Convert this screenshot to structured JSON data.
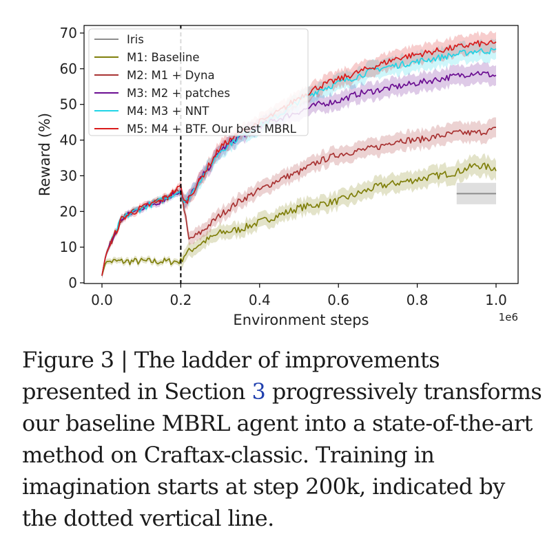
{
  "chart_data": {
    "type": "line",
    "xlabel": "Environment steps",
    "ylabel": "Reward (%)",
    "x_offset_label": "1e6",
    "xlim": [
      0,
      1.0
    ],
    "ylim": [
      0,
      70
    ],
    "xticks": [
      "0.0",
      "0.2",
      "0.4",
      "0.6",
      "0.8",
      "1.0"
    ],
    "yticks": [
      "0",
      "10",
      "20",
      "30",
      "40",
      "50",
      "60",
      "70"
    ],
    "vline_x": 0.2,
    "legend_position": "top-left",
    "series": [
      {
        "name": "Iris",
        "color": "#8c8c8c",
        "x": [
          0.9,
          1.0
        ],
        "y": [
          25,
          25
        ],
        "band": [
          [
            0.9,
            22,
            28
          ],
          [
            1.0,
            22,
            28
          ]
        ]
      },
      {
        "name": "M1: Baseline",
        "color": "#7f7f0a",
        "x": [
          0,
          0.01,
          0.05,
          0.1,
          0.15,
          0.2,
          0.21,
          0.25,
          0.3,
          0.35,
          0.4,
          0.45,
          0.5,
          0.55,
          0.6,
          0.65,
          0.7,
          0.75,
          0.8,
          0.85,
          0.9,
          0.95,
          1.0
        ],
        "y": [
          2,
          6,
          6,
          6,
          6,
          6,
          8,
          11,
          14,
          15,
          17,
          19,
          21,
          22,
          23,
          25,
          27,
          28,
          29,
          30,
          31,
          33,
          32
        ]
      },
      {
        "name": "M2: M1 + Dyna",
        "color": "#a83232",
        "x": [
          0,
          0.01,
          0.05,
          0.1,
          0.15,
          0.2,
          0.21,
          0.22,
          0.25,
          0.3,
          0.35,
          0.4,
          0.45,
          0.5,
          0.55,
          0.6,
          0.65,
          0.7,
          0.75,
          0.8,
          0.85,
          0.9,
          0.95,
          1.0
        ],
        "y": [
          2,
          8,
          18,
          21,
          23,
          26,
          20,
          12,
          14,
          19,
          23,
          26,
          29,
          31,
          34,
          36,
          37,
          38,
          40,
          40,
          41,
          42,
          42,
          43
        ]
      },
      {
        "name": "M3: M2 + patches",
        "color": "#6a0d91",
        "x": [
          0,
          0.01,
          0.05,
          0.1,
          0.15,
          0.2,
          0.21,
          0.25,
          0.3,
          0.35,
          0.4,
          0.45,
          0.5,
          0.55,
          0.6,
          0.65,
          0.7,
          0.75,
          0.8,
          0.85,
          0.9,
          0.95,
          1.0
        ],
        "y": [
          2,
          8,
          18,
          21,
          23,
          26,
          22,
          29,
          37,
          41,
          44,
          46,
          48,
          50,
          51,
          53,
          54,
          55,
          56,
          57,
          58,
          59,
          58
        ]
      },
      {
        "name": "M4: M3 + NNT",
        "color": "#1fd4e6",
        "x": [
          0,
          0.01,
          0.05,
          0.1,
          0.15,
          0.2,
          0.21,
          0.25,
          0.3,
          0.35,
          0.4,
          0.45,
          0.5,
          0.55,
          0.6,
          0.65,
          0.7,
          0.75,
          0.8,
          0.85,
          0.9,
          0.95,
          1.0
        ],
        "y": [
          2,
          8,
          18,
          21,
          23,
          26,
          22,
          29,
          37,
          41,
          44,
          47,
          51,
          54,
          56,
          58,
          60,
          61,
          62,
          63,
          64,
          65,
          65
        ]
      },
      {
        "name": "M5: M4 + BTF. Our best MBRL",
        "color": "#d91a1a",
        "x": [
          0,
          0.01,
          0.05,
          0.1,
          0.15,
          0.2,
          0.21,
          0.25,
          0.3,
          0.35,
          0.4,
          0.45,
          0.5,
          0.55,
          0.6,
          0.65,
          0.7,
          0.75,
          0.8,
          0.85,
          0.9,
          0.95,
          1.0
        ],
        "y": [
          2,
          8,
          18,
          21,
          23,
          27,
          22,
          29,
          38,
          42,
          45,
          48,
          52,
          55,
          57,
          59,
          61,
          63,
          64,
          65,
          66,
          67,
          67
        ]
      }
    ]
  },
  "caption": {
    "part1": "Figure 3 | The ladder of improvements presented in Section ",
    "ref": "3",
    "part2": " progressively transforms our baseline MBRL agent into a state-of-the-art method on Craftax-classic. Training in imagination starts at step 200k, indicated by the dotted vertical line."
  }
}
